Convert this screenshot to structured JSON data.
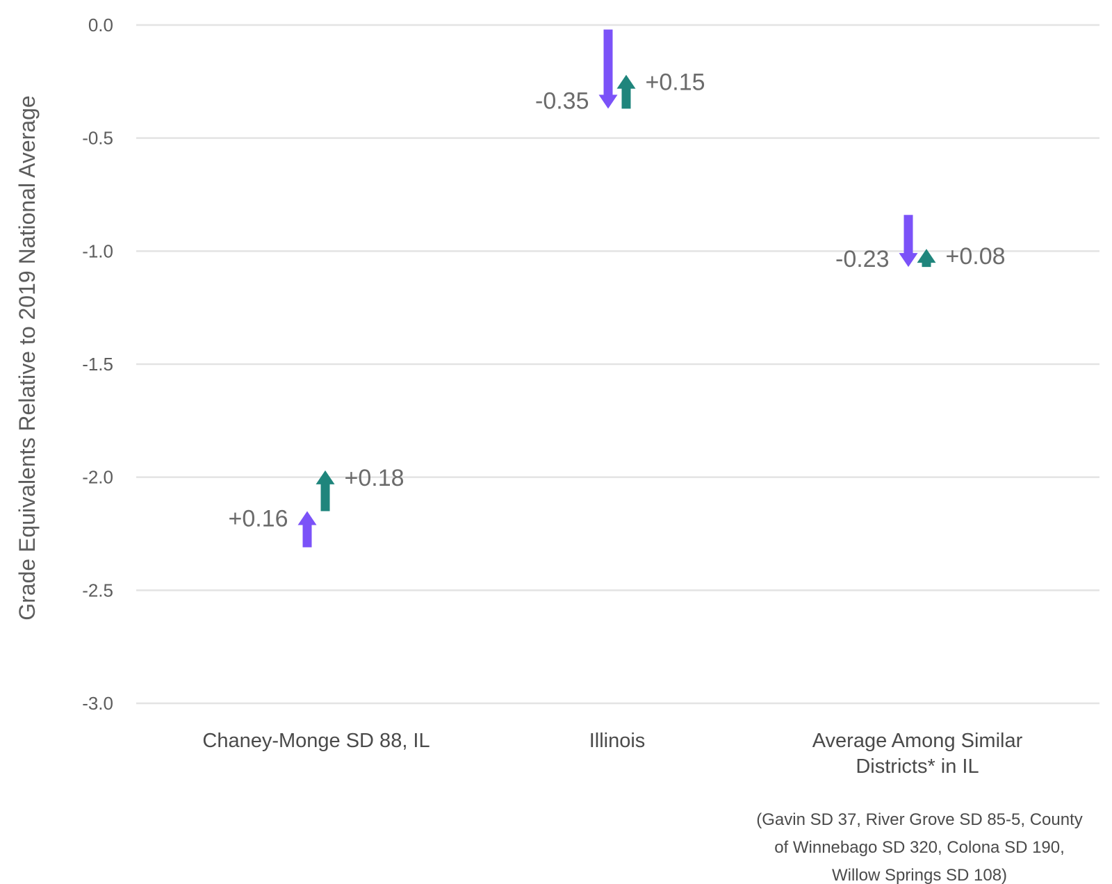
{
  "chart_data": {
    "type": "arrow",
    "title": "",
    "xlabel": "",
    "ylabel": "Grade Equivalents Relative to 2019 National Average",
    "ylim": [
      -3.0,
      0.0
    ],
    "yticks": [
      {
        "value": 0.0,
        "label": "0.0"
      },
      {
        "value": -0.5,
        "label": "-0.5"
      },
      {
        "value": -1.0,
        "label": "-1.0"
      },
      {
        "value": -1.5,
        "label": "-1.5"
      },
      {
        "value": -2.0,
        "label": "-2.0"
      },
      {
        "value": -2.5,
        "label": "-2.5"
      },
      {
        "value": -3.0,
        "label": "-3.0"
      }
    ],
    "grid": true,
    "categories": [
      {
        "lines": [
          "Chaney-Monge SD 88, IL"
        ]
      },
      {
        "lines": [
          "Illinois"
        ]
      },
      {
        "lines": [
          "Average Among Similar",
          "Districts* in IL"
        ]
      }
    ],
    "series": [
      {
        "color": "#7b52f8",
        "arrows": [
          {
            "start": -2.31,
            "end": -2.15,
            "label": "+0.16"
          },
          {
            "start": -0.02,
            "end": -0.37,
            "label": "-0.35"
          },
          {
            "start": -0.84,
            "end": -1.07,
            "label": "-0.23"
          }
        ]
      },
      {
        "color": "#1f857c",
        "arrows": [
          {
            "start": -2.15,
            "end": -1.97,
            "label": "+0.18"
          },
          {
            "start": -0.37,
            "end": -0.22,
            "label": "+0.15"
          },
          {
            "start": -1.07,
            "end": -0.99,
            "label": "+0.08"
          }
        ]
      }
    ],
    "note_lines": [
      "(Gavin SD 37, River Grove SD 85-5, County",
      "of Winnebago SD 320, Colona SD 190,",
      "Willow Springs SD 108)"
    ]
  }
}
